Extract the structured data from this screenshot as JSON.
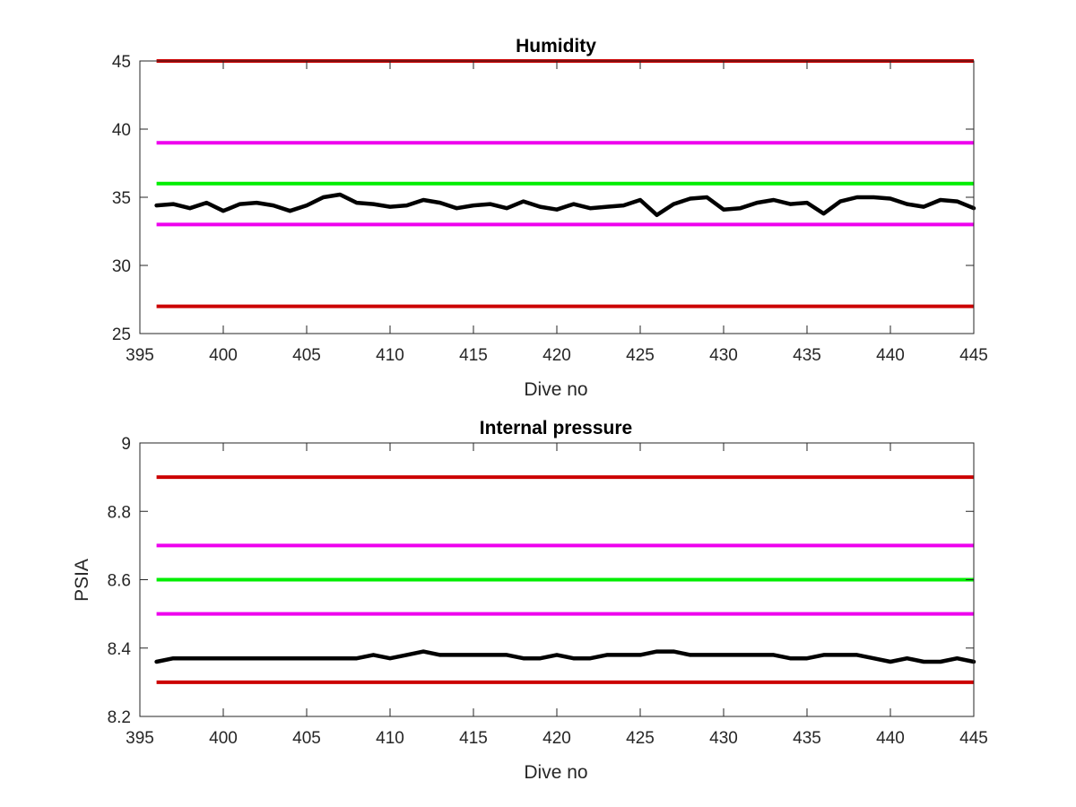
{
  "chart_data": [
    {
      "type": "line",
      "title": "Humidity",
      "xlabel": "Dive no",
      "ylabel": "",
      "xlim": [
        395,
        445
      ],
      "ylim": [
        25,
        45
      ],
      "xticks": [
        395,
        400,
        405,
        410,
        415,
        420,
        425,
        430,
        435,
        440,
        445
      ],
      "yticks": [
        25,
        30,
        35,
        40,
        45
      ],
      "grid": false,
      "colors": {
        "data": "#000000",
        "outer_limit": "#cc0000",
        "inner_limit": "#ee00ee",
        "nominal": "#00ee00"
      },
      "reference_lines": [
        {
          "y": 45,
          "color": "#cc0000"
        },
        {
          "y": 39,
          "color": "#ee00ee"
        },
        {
          "y": 36,
          "color": "#00ee00"
        },
        {
          "y": 33,
          "color": "#ee00ee"
        },
        {
          "y": 27,
          "color": "#cc0000"
        }
      ],
      "series": [
        {
          "x": [
            396,
            397,
            398,
            399,
            400,
            401,
            402,
            403,
            404,
            405,
            406,
            407,
            408,
            409,
            410,
            411,
            412,
            413,
            414,
            415,
            416,
            417,
            418,
            419,
            420,
            421,
            422,
            423,
            424,
            425,
            426,
            427,
            428,
            429,
            430,
            431,
            432,
            433,
            434,
            435,
            436,
            437,
            438,
            439,
            440,
            441,
            442,
            443,
            444,
            445
          ],
          "values": [
            34.4,
            34.5,
            34.2,
            34.6,
            34.0,
            34.5,
            34.6,
            34.4,
            34.0,
            34.4,
            35.0,
            35.2,
            34.6,
            34.5,
            34.3,
            34.4,
            34.8,
            34.6,
            34.2,
            34.4,
            34.5,
            34.2,
            34.7,
            34.3,
            34.1,
            34.5,
            34.2,
            34.3,
            34.4,
            34.8,
            33.7,
            34.5,
            34.9,
            35.0,
            34.1,
            34.2,
            34.6,
            34.8,
            34.5,
            34.6,
            33.8,
            34.7,
            35.0,
            35.0,
            34.9,
            34.5,
            34.3,
            34.8,
            34.7,
            34.2
          ]
        }
      ]
    },
    {
      "type": "line",
      "title": "Internal pressure",
      "xlabel": "Dive no",
      "ylabel": "PSIA",
      "xlim": [
        395,
        445
      ],
      "ylim": [
        8.2,
        9
      ],
      "xticks": [
        395,
        400,
        405,
        410,
        415,
        420,
        425,
        430,
        435,
        440,
        445
      ],
      "yticks": [
        8.2,
        8.4,
        8.6,
        8.8,
        9
      ],
      "grid": false,
      "colors": {
        "data": "#000000",
        "outer_limit": "#cc0000",
        "inner_limit": "#ee00ee",
        "nominal": "#00ee00"
      },
      "reference_lines": [
        {
          "y": 8.9,
          "color": "#cc0000"
        },
        {
          "y": 8.7,
          "color": "#ee00ee"
        },
        {
          "y": 8.6,
          "color": "#00ee00"
        },
        {
          "y": 8.5,
          "color": "#ee00ee"
        },
        {
          "y": 8.3,
          "color": "#cc0000"
        }
      ],
      "series": [
        {
          "x": [
            396,
            397,
            398,
            399,
            400,
            401,
            402,
            403,
            404,
            405,
            406,
            407,
            408,
            409,
            410,
            411,
            412,
            413,
            414,
            415,
            416,
            417,
            418,
            419,
            420,
            421,
            422,
            423,
            424,
            425,
            426,
            427,
            428,
            429,
            430,
            431,
            432,
            433,
            434,
            435,
            436,
            437,
            438,
            439,
            440,
            441,
            442,
            443,
            444,
            445
          ],
          "values": [
            8.36,
            8.37,
            8.37,
            8.37,
            8.37,
            8.37,
            8.37,
            8.37,
            8.37,
            8.37,
            8.37,
            8.37,
            8.37,
            8.38,
            8.37,
            8.38,
            8.39,
            8.38,
            8.38,
            8.38,
            8.38,
            8.38,
            8.37,
            8.37,
            8.38,
            8.37,
            8.37,
            8.38,
            8.38,
            8.38,
            8.39,
            8.39,
            8.38,
            8.38,
            8.38,
            8.38,
            8.38,
            8.38,
            8.37,
            8.37,
            8.38,
            8.38,
            8.38,
            8.37,
            8.36,
            8.37,
            8.36,
            8.36,
            8.37,
            8.36
          ]
        }
      ]
    }
  ]
}
